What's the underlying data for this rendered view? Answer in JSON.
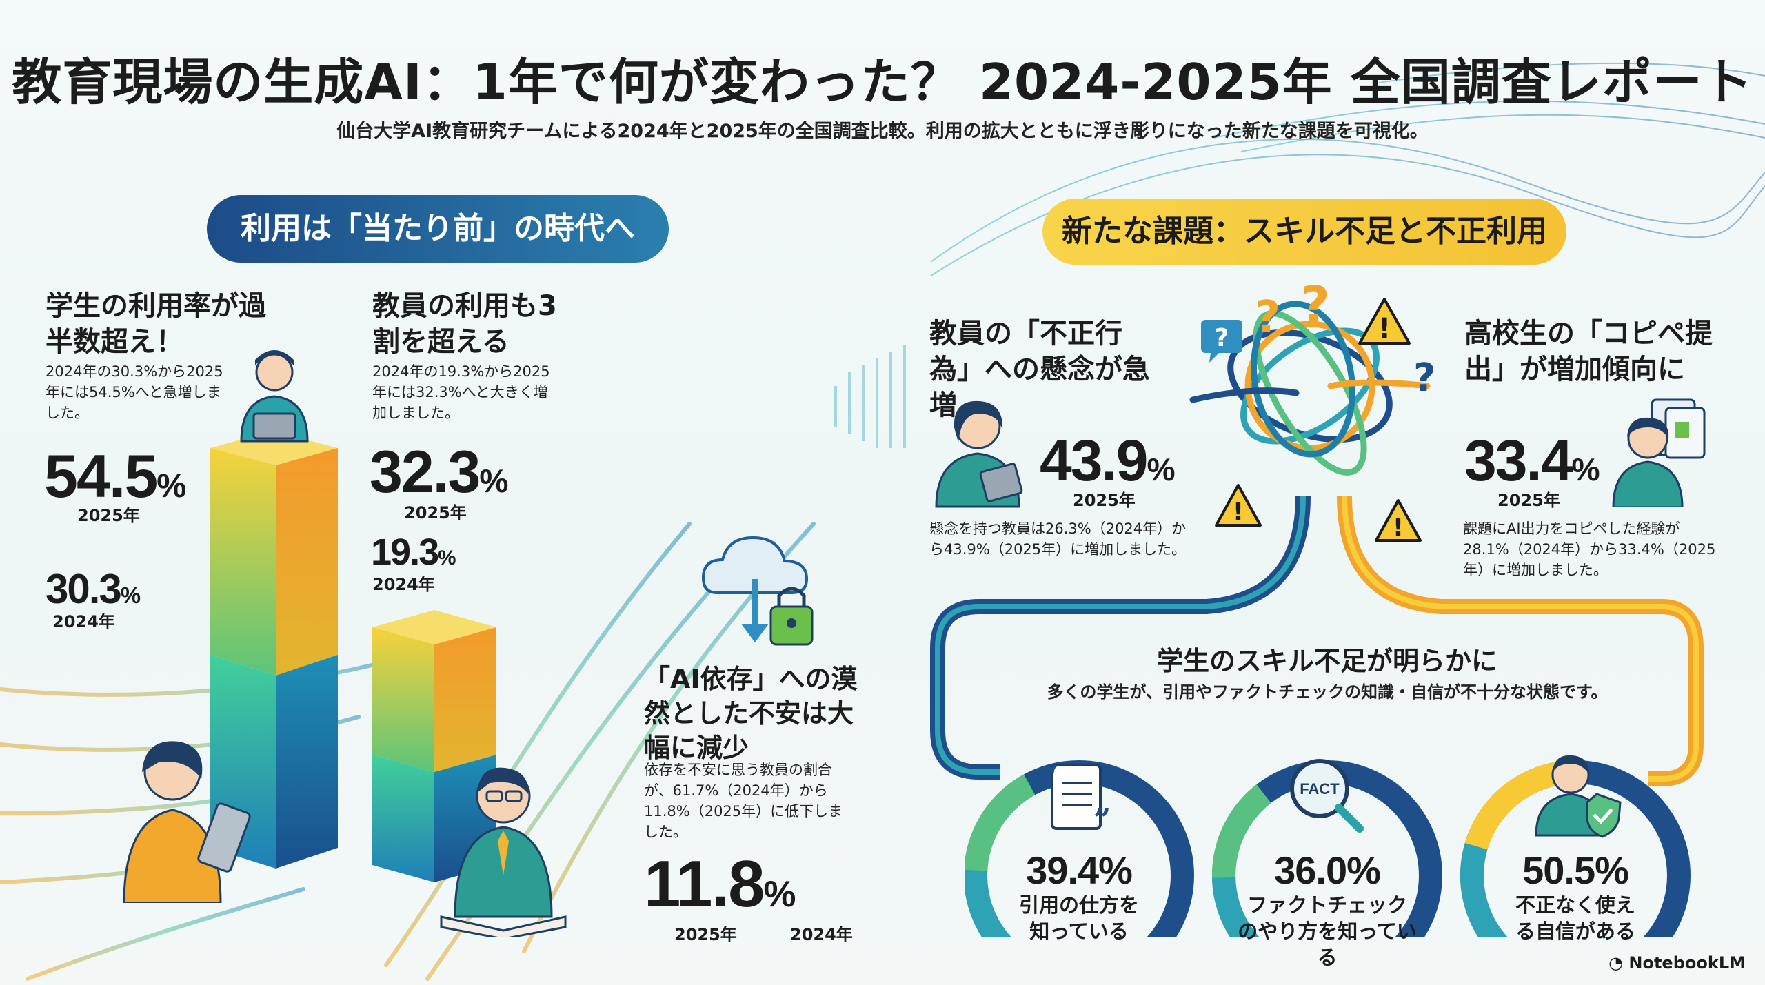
{
  "header": {
    "title": "教育現場の生成AI：1年で何が変わった？ 2024-2025年 全国調査レポート",
    "subtitle": "仙台大学AI教育研究チームによる2024年と2025年の全国調査比較。利用の拡大とともに浮き彫りになった新たな課題を可視化。"
  },
  "left": {
    "section_label": "利用は「当たり前」の時代へ",
    "students": {
      "heading": "学生の利用率が過半数超え！",
      "description": "2024年の30.3%から2025年には54.5%へと急増しました。",
      "value_2025": "54.5",
      "label_2025": "2025年",
      "value_2024": "30.3",
      "label_2024": "2024年",
      "unit": "%"
    },
    "teachers": {
      "heading": "教員の利用も3割を超える",
      "description": "2024年の19.3%から2025年には32.3%へと大きく増加しました。",
      "value_2025": "32.3",
      "label_2025": "2025年",
      "value_2024": "19.3",
      "label_2024": "2024年",
      "unit": "%"
    },
    "dependence": {
      "heading": "「AI依存」への漠然とした不安は大幅に減少",
      "description": "依存を不安に思う教員の割合が、61.7%（2024年）から11.8%（2025年）に低下しました。",
      "value": "11.8",
      "unit": "%",
      "label_2025": "2025年",
      "label_2024": "2024年"
    }
  },
  "right": {
    "section_label": "新たな課題：スキル不足と不正利用",
    "misconduct": {
      "heading": "教員の「不正行為」への懸念が急増",
      "value": "43.9",
      "unit": "%",
      "year": "2025年",
      "description": "懸念を持つ教員は26.3%（2024年）から43.9%（2025年）に増加しました。"
    },
    "copypaste": {
      "heading": "高校生の「コピペ提出」が増加傾向に",
      "value": "33.4",
      "unit": "%",
      "year": "2025年",
      "description": "課題にAI出力をコピペした経験が28.1%（2024年）から33.4%（2025年）に増加しました。"
    },
    "skills": {
      "heading": "学生のスキル不足が明らかに",
      "description": "多くの学生が、引用やファクトチェックの知識・自信が不十分な状態です。",
      "gauges": [
        {
          "value": 39.4,
          "text": "39.4%",
          "label": "引用の仕方を知っている"
        },
        {
          "value": 36.0,
          "text": "36.0%",
          "label": "ファクトチェックのやり方を知っている"
        },
        {
          "value": 50.5,
          "text": "50.5%",
          "label": "不正なく使える自信がある"
        }
      ],
      "fact_icon_text": "FACT"
    }
  },
  "footer": {
    "brand": "NotebookLM"
  },
  "colors": {
    "navy": "#1d4b87",
    "teal": "#1f9aa6",
    "yellow": "#f6c935",
    "orange": "#f08a2a",
    "green": "#3db88b"
  }
}
